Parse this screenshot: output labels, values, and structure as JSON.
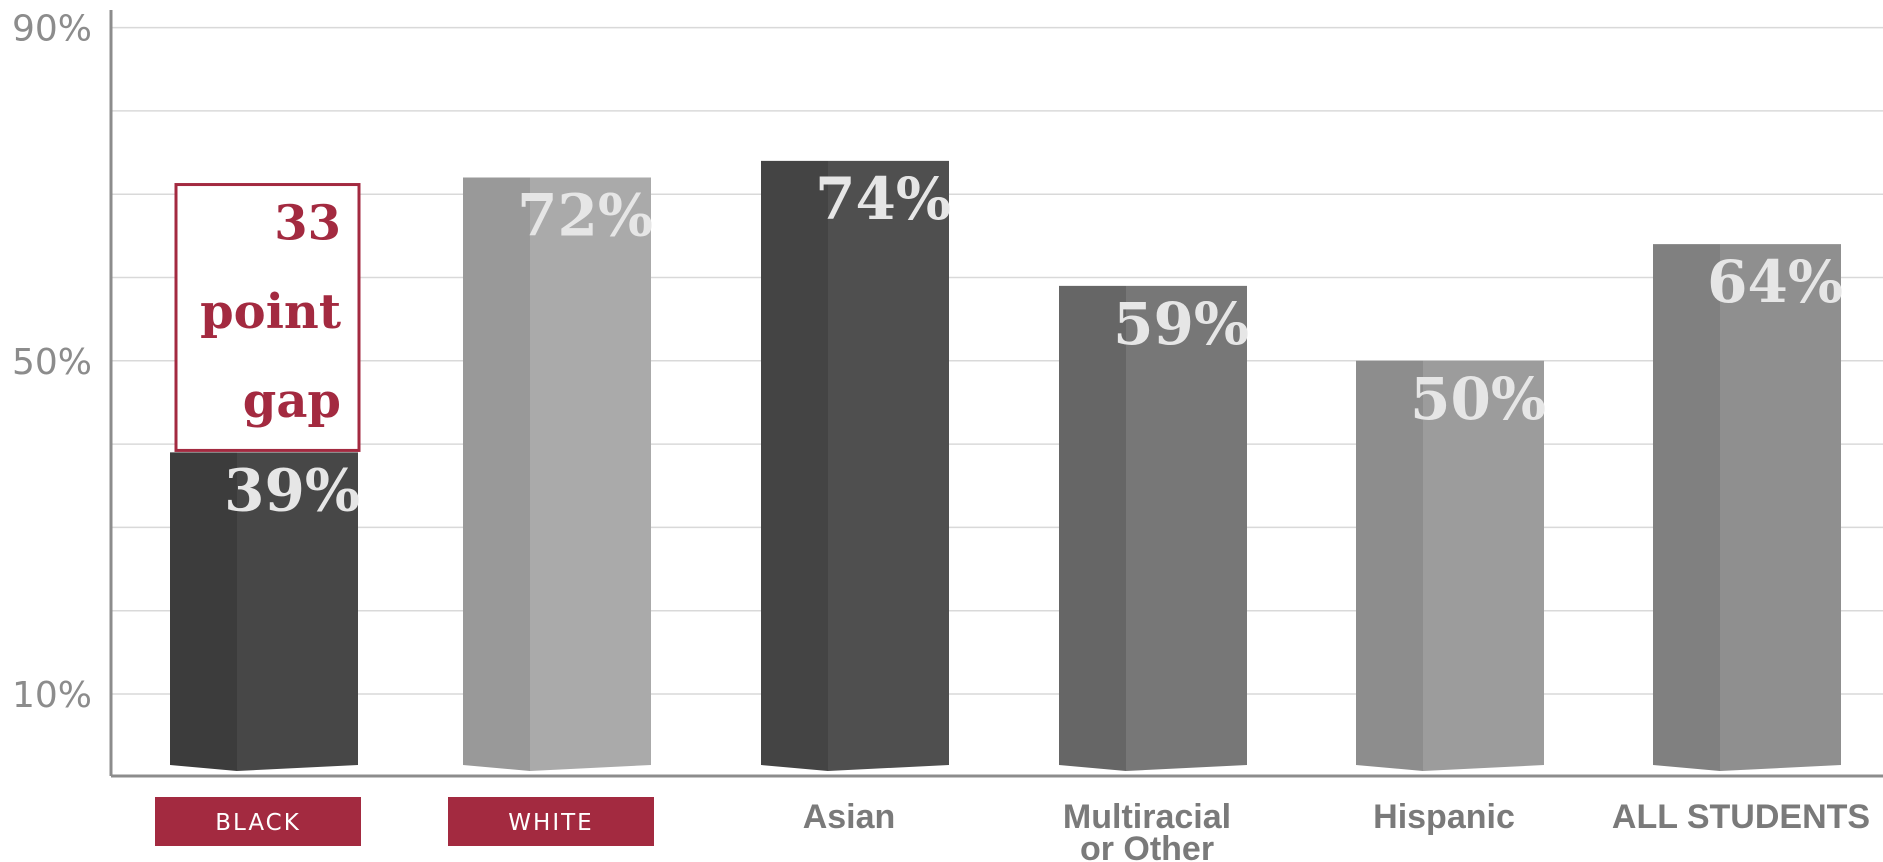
{
  "chart_data": {
    "type": "bar",
    "categories": [
      "BLACK",
      "WHITE",
      "Asian",
      "Multiracial or Other",
      "Hispanic",
      "ALL STUDENTS"
    ],
    "values": [
      39,
      72,
      74,
      59,
      50,
      64
    ],
    "value_labels": [
      "39%",
      "72%",
      "74%",
      "59%",
      "50%",
      "64%"
    ],
    "highlighted_categories": [
      "BLACK",
      "WHITE"
    ],
    "y_ticks": [
      10,
      50,
      90
    ],
    "y_tick_labels": [
      "10%",
      "50%",
      "90%"
    ],
    "ylim": [
      1,
      90
    ],
    "grid": true,
    "annotation": {
      "lines": [
        "33",
        "point",
        "gap"
      ],
      "from": "BLACK",
      "to": "WHITE"
    },
    "colors": {
      "accent": "#a32a40",
      "bars_front": [
        "#474747",
        "#aaaaaa",
        "#4f4f4f",
        "#777777",
        "#9c9c9c",
        "#8f8f8f"
      ],
      "bars_side": [
        "#3c3c3c",
        "#999999",
        "#444444",
        "#666666",
        "#8d8d8d",
        "#808080"
      ],
      "value_label": "#e6e6e6",
      "axis": "#8c8c8c",
      "grid": "#d9d9d9"
    }
  }
}
